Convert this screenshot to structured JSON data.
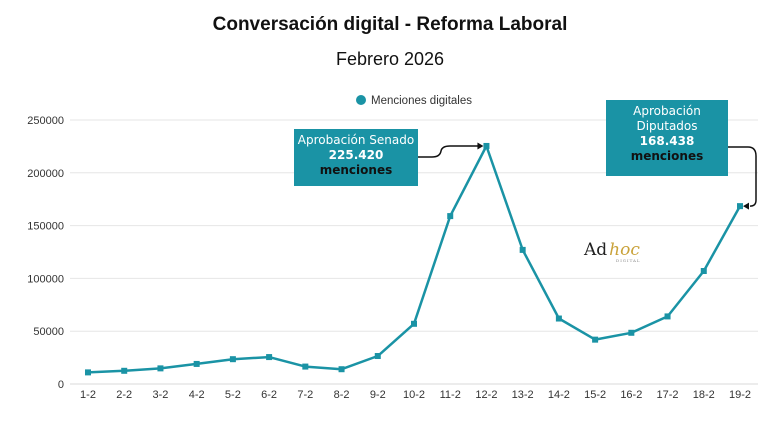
{
  "title": "Conversación digital - Reforma Laboral",
  "subtitle": "Febrero 2026",
  "colors": {
    "series": "#1a93a5",
    "text": "#222222",
    "grid": "#e6e6e6"
  },
  "chart_data": {
    "type": "line",
    "categories": [
      "1-2",
      "2-2",
      "3-2",
      "4-2",
      "5-2",
      "6-2",
      "7-2",
      "8-2",
      "9-2",
      "10-2",
      "11-2",
      "12-2",
      "13-2",
      "14-2",
      "15-2",
      "16-2",
      "17-2",
      "18-2",
      "19-2"
    ],
    "series": [
      {
        "name": "Menciones digitales",
        "values": [
          11000,
          12500,
          14800,
          19000,
          23500,
          25500,
          16500,
          14000,
          26500,
          57000,
          159000,
          225420,
          127000,
          62000,
          42000,
          48500,
          64000,
          107000,
          168438
        ]
      }
    ],
    "yticks": [
      0,
      50000,
      100000,
      150000,
      200000,
      250000
    ],
    "ylim": [
      0,
      250000
    ],
    "legend_position": "top",
    "grid": true
  },
  "annotations": [
    {
      "label": "Aprobación Senado",
      "value": "225.420",
      "unit": "menciones",
      "category": "12-2"
    },
    {
      "label_line1": "Aprobación",
      "label_line2": "Diputados",
      "value": "168.438",
      "unit": "menciones",
      "category": "19-2"
    }
  ],
  "logo": {
    "text_main": "Ad",
    "text_accent": "hoc",
    "text_small": "DIGITAL"
  }
}
